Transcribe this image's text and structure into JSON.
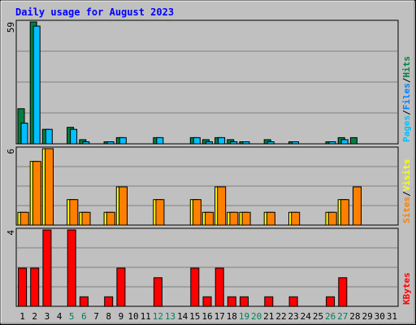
{
  "chart_data": [
    {
      "type": "bar",
      "title": "Daily usage for August 2023",
      "panel": "top",
      "y_max_label": "59",
      "ylim": [
        0,
        59
      ],
      "grid": true,
      "legend": [
        "Pages",
        "Files",
        "Hits"
      ],
      "x": [
        1,
        2,
        3,
        4,
        5,
        6,
        7,
        8,
        9,
        10,
        11,
        12,
        13,
        14,
        15,
        16,
        17,
        18,
        19,
        20,
        21,
        22,
        23,
        24,
        25,
        26,
        27,
        28,
        29,
        30,
        31
      ],
      "series": [
        {
          "name": "Hits",
          "color": "#008040",
          "values": [
            17,
            59,
            7,
            0,
            8,
            2,
            0,
            1,
            3,
            0,
            0,
            3,
            0,
            0,
            3,
            2,
            3,
            2,
            1,
            0,
            2,
            0,
            1,
            0,
            0,
            1,
            3,
            3,
            0,
            0,
            0
          ]
        },
        {
          "name": "Files",
          "color": "#00C0FF",
          "values": [
            10,
            57,
            7,
            0,
            7,
            1,
            0,
            1,
            3,
            0,
            0,
            3,
            0,
            0,
            3,
            1,
            3,
            1,
            1,
            0,
            1,
            0,
            1,
            0,
            0,
            1,
            2,
            0,
            0,
            0,
            0
          ]
        },
        {
          "name": "Pages",
          "color": "#00C0FF",
          "values": [
            0,
            0,
            0,
            0,
            0,
            0,
            0,
            0,
            0,
            0,
            0,
            0,
            0,
            0,
            0,
            0,
            0,
            0,
            0,
            0,
            0,
            0,
            0,
            0,
            0,
            0,
            0,
            0,
            0,
            0,
            0
          ]
        }
      ]
    },
    {
      "type": "bar",
      "panel": "middle",
      "y_max_label": "6",
      "ylim": [
        0,
        6
      ],
      "grid": true,
      "legend": [
        "Sites",
        "Visits"
      ],
      "x": [
        1,
        2,
        3,
        4,
        5,
        6,
        7,
        8,
        9,
        10,
        11,
        12,
        13,
        14,
        15,
        16,
        17,
        18,
        19,
        20,
        21,
        22,
        23,
        24,
        25,
        26,
        27,
        28,
        29,
        30,
        31
      ],
      "series": [
        {
          "name": "Visits",
          "color": "#FFFF00",
          "values": [
            1,
            5,
            6,
            0,
            2,
            1,
            0,
            1,
            3,
            0,
            0,
            2,
            0,
            0,
            2,
            1,
            3,
            1,
            1,
            0,
            1,
            0,
            1,
            0,
            0,
            1,
            2,
            0,
            0,
            0,
            0
          ]
        },
        {
          "name": "Sites",
          "color": "#FF8000",
          "values": [
            1,
            5,
            6,
            0,
            2,
            1,
            0,
            1,
            3,
            0,
            0,
            2,
            0,
            0,
            2,
            1,
            3,
            1,
            1,
            0,
            1,
            0,
            1,
            0,
            0,
            1,
            2,
            3,
            0,
            0,
            0
          ]
        }
      ]
    },
    {
      "type": "bar",
      "panel": "bottom",
      "y_max_label": "4",
      "ylim": [
        0,
        4
      ],
      "grid": true,
      "legend": [
        "KBytes"
      ],
      "x": [
        1,
        2,
        3,
        4,
        5,
        6,
        7,
        8,
        9,
        10,
        11,
        12,
        13,
        14,
        15,
        16,
        17,
        18,
        19,
        20,
        21,
        22,
        23,
        24,
        25,
        26,
        27,
        28,
        29,
        30,
        31
      ],
      "weekend_days": [
        5,
        6,
        12,
        13,
        19,
        20,
        26,
        27
      ],
      "series": [
        {
          "name": "KBytes",
          "color": "#FF0000",
          "values": [
            2,
            2,
            4,
            0,
            4,
            0.5,
            0,
            0.5,
            2,
            0,
            0,
            1.5,
            0,
            0,
            2,
            0.5,
            2,
            0.5,
            0.5,
            0,
            0.5,
            0,
            0.5,
            0,
            0,
            0.5,
            1.5,
            0,
            0,
            0,
            0
          ]
        }
      ]
    }
  ],
  "colors": {
    "background": "#C0C0C0",
    "title": "#0000FF",
    "weekday_label": "#000000",
    "weekend_label": "#00805C",
    "legend_separator": "#000000"
  }
}
